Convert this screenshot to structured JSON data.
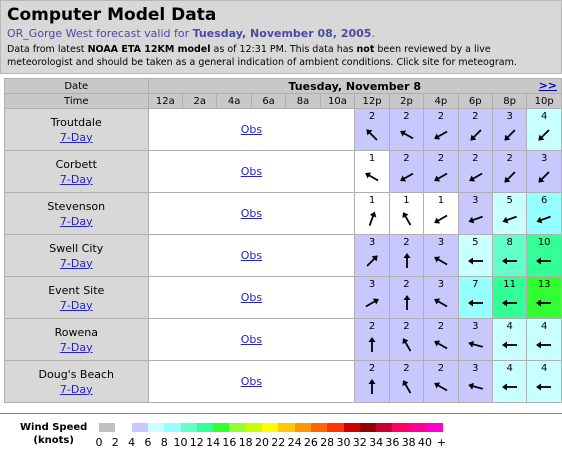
{
  "header": {
    "title": "Computer Model Data",
    "region_link": "OR_Gorge West",
    "valid_prefix": " forecast valid for ",
    "valid_date": "Tuesday, November 08, 2005",
    "valid_suffix": ".",
    "desc_1": "Data from latest ",
    "desc_model": "NOAA ETA 12KM model",
    "desc_2": " as of 12:31 PM. This data has ",
    "desc_not": "not",
    "desc_3": " been reviewed by a live meteorologist and should be taken as a general indication of ambient conditions. Click site for meteogram."
  },
  "table": {
    "date_label": "Date",
    "time_label": "Time",
    "day_label": "Tuesday, November 8",
    "next_label": ">>",
    "hours": [
      "12a",
      "2a",
      "4a",
      "6a",
      "8a",
      "10a",
      "12p",
      "2p",
      "4p",
      "6p",
      "8p",
      "10p"
    ],
    "obs_label": "Obs",
    "sevenday_label": "7-Day",
    "rows": [
      {
        "name": "Troutdale",
        "cells": [
          {
            "s": "2",
            "d": 315
          },
          {
            "s": "2",
            "d": 300
          },
          {
            "s": "2",
            "d": 240
          },
          {
            "s": "2",
            "d": 225
          },
          {
            "s": "3",
            "d": 225
          },
          {
            "s": "4",
            "d": 225
          }
        ]
      },
      {
        "name": "Corbett",
        "cells": [
          {
            "s": "1",
            "d": 300
          },
          {
            "s": "2",
            "d": 240
          },
          {
            "s": "2",
            "d": 240
          },
          {
            "s": "2",
            "d": 240
          },
          {
            "s": "2",
            "d": 225
          },
          {
            "s": "3",
            "d": 225
          }
        ]
      },
      {
        "name": "Stevenson",
        "cells": [
          {
            "s": "1",
            "d": 20
          },
          {
            "s": "1",
            "d": 330
          },
          {
            "s": "1",
            "d": 240
          },
          {
            "s": "3",
            "d": 250
          },
          {
            "s": "5",
            "d": 250
          },
          {
            "s": "6",
            "d": 250
          }
        ]
      },
      {
        "name": "Swell City",
        "cells": [
          {
            "s": "3",
            "d": 45
          },
          {
            "s": "2",
            "d": 0
          },
          {
            "s": "3",
            "d": 300
          },
          {
            "s": "5",
            "d": 270
          },
          {
            "s": "8",
            "d": 270
          },
          {
            "s": "10",
            "d": 270
          }
        ]
      },
      {
        "name": "Event Site",
        "cells": [
          {
            "s": "3",
            "d": 60
          },
          {
            "s": "2",
            "d": 0
          },
          {
            "s": "3",
            "d": 300
          },
          {
            "s": "7",
            "d": 270
          },
          {
            "s": "11",
            "d": 270
          },
          {
            "s": "13",
            "d": 270
          }
        ]
      },
      {
        "name": "Rowena",
        "cells": [
          {
            "s": "2",
            "d": 0
          },
          {
            "s": "2",
            "d": 330
          },
          {
            "s": "2",
            "d": 300
          },
          {
            "s": "3",
            "d": 285
          },
          {
            "s": "4",
            "d": 270
          },
          {
            "s": "4",
            "d": 270
          }
        ]
      },
      {
        "name": "Doug's Beach",
        "cells": [
          {
            "s": "2",
            "d": 0
          },
          {
            "s": "2",
            "d": 330
          },
          {
            "s": "2",
            "d": 300
          },
          {
            "s": "3",
            "d": 285
          },
          {
            "s": "4",
            "d": 270
          },
          {
            "s": "4",
            "d": 270
          }
        ]
      }
    ]
  },
  "legend": {
    "label_1": "Wind Speed",
    "label_2": "(knots)",
    "numbers": [
      "0",
      "2",
      "4",
      "6",
      "8",
      "10",
      "12",
      "14",
      "16",
      "18",
      "20",
      "22",
      "24",
      "26",
      "28",
      "30",
      "32",
      "34",
      "36",
      "38",
      "40",
      "+"
    ],
    "colors": [
      "#c0c0c0",
      "#ffffff",
      "#c8c8ff",
      "#c8ffff",
      "#96ffff",
      "#64ffc8",
      "#32ff96",
      "#32ff32",
      "#96ff32",
      "#c8ff00",
      "#ffff00",
      "#ffc800",
      "#ff9600",
      "#ff6400",
      "#ff3200",
      "#c80000",
      "#960000",
      "#c80032",
      "#ff0064",
      "#ff0096",
      "#ff00c8",
      "#ff32ff"
    ]
  }
}
